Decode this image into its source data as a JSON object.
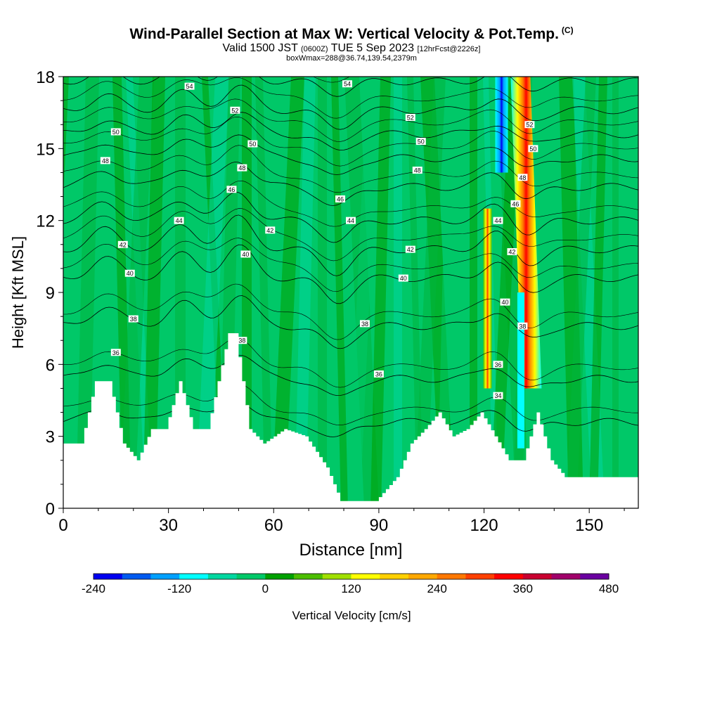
{
  "header": {
    "title": "Wind-Parallel Section at Max W: Vertical Velocity & Pot.Temp.",
    "copyright": "(C)",
    "valid_prefix": "Valid 1500 JST",
    "valid_utc": "(0600Z)",
    "valid_date": "TUE 5 Sep 2023",
    "forecast": "[12hrFcst@2226z]",
    "box_info": "boxWmax=288@36.74,139.54,2379m"
  },
  "chart_data": {
    "type": "heatmap",
    "xlabel": "Distance [nm]",
    "ylabel": "Height [Kft MSL]",
    "xlim": [
      0,
      164
    ],
    "ylim": [
      0,
      18
    ],
    "x_ticks": [
      0,
      30,
      60,
      90,
      120,
      150
    ],
    "x_tick_labels": [
      "0",
      "30",
      "60",
      "90",
      "120",
      "150"
    ],
    "y_ticks": [
      0,
      3,
      6,
      9,
      12,
      15,
      18
    ],
    "y_tick_labels": [
      "0",
      "3",
      "6",
      "9",
      "12",
      "15",
      "18"
    ],
    "colorbar": {
      "label": "Vertical Velocity [cm/s]",
      "ticks": [
        -240,
        -120,
        0,
        120,
        240,
        360,
        480
      ],
      "tick_labels": [
        "-240",
        "-120",
        "0",
        "120",
        "240",
        "360",
        "480"
      ],
      "levels": [
        -240,
        -200,
        -160,
        -120,
        -80,
        -40,
        0,
        40,
        80,
        120,
        160,
        200,
        240,
        280,
        320,
        360,
        400,
        440,
        480
      ],
      "colors": [
        "#0000f0",
        "#005af0",
        "#00a0ff",
        "#00ffff",
        "#00d7a0",
        "#00c868",
        "#00a000",
        "#4cbe00",
        "#a0e000",
        "#ffff00",
        "#ffd000",
        "#ffa800",
        "#ff7800",
        "#ff4000",
        "#ff0000",
        "#c80030",
        "#a0006a",
        "#6a00a0"
      ]
    },
    "terrain_kft": [
      [
        0,
        2.7
      ],
      [
        6,
        2.7
      ],
      [
        10,
        5.3
      ],
      [
        14,
        5.3
      ],
      [
        18,
        2.7
      ],
      [
        22,
        2.0
      ],
      [
        26,
        3.3
      ],
      [
        30,
        3.3
      ],
      [
        34,
        5.3
      ],
      [
        38,
        3.3
      ],
      [
        42,
        3.3
      ],
      [
        48,
        7.3
      ],
      [
        50,
        7.3
      ],
      [
        54,
        3.3
      ],
      [
        58,
        2.7
      ],
      [
        64,
        3.3
      ],
      [
        70,
        3.0
      ],
      [
        76,
        1.7
      ],
      [
        80,
        0.3
      ],
      [
        84,
        0.3
      ],
      [
        90,
        0.3
      ],
      [
        96,
        1.3
      ],
      [
        100,
        2.7
      ],
      [
        104,
        3.3
      ],
      [
        108,
        4.0
      ],
      [
        112,
        3.0
      ],
      [
        116,
        3.3
      ],
      [
        120,
        4.0
      ],
      [
        124,
        3.0
      ],
      [
        128,
        2.0
      ],
      [
        132,
        2.0
      ],
      [
        136,
        4.0
      ],
      [
        140,
        2.0
      ],
      [
        144,
        1.3
      ],
      [
        164,
        1.3
      ]
    ],
    "theta_contours": [
      {
        "label": "34",
        "base": 3.6,
        "amp": 0.6
      },
      {
        "label": "36",
        "base": 5.4,
        "amp": 0.7
      },
      {
        "label": "38",
        "base": 7.6,
        "amp": 0.8
      },
      {
        "label": "40",
        "base": 9.6,
        "amp": 0.8
      },
      {
        "label": "42",
        "base": 10.8,
        "amp": 0.8
      },
      {
        "label": "44",
        "base": 12.0,
        "amp": 0.7
      },
      {
        "label": "46",
        "base": 13.4,
        "amp": 0.7
      },
      {
        "label": "48",
        "base": 14.6,
        "amp": 0.7
      },
      {
        "label": "50",
        "base": 15.6,
        "amp": 0.6
      },
      {
        "label": "52",
        "base": 16.6,
        "amp": 0.6
      },
      {
        "label": "54",
        "base": 17.8,
        "amp": 0.4
      }
    ],
    "contour_labels": [
      {
        "text": "54",
        "x": 36,
        "y": 17.6
      },
      {
        "text": "54",
        "x": 81,
        "y": 17.7
      },
      {
        "text": "52",
        "x": 49,
        "y": 16.6
      },
      {
        "text": "52",
        "x": 99,
        "y": 16.3
      },
      {
        "text": "52",
        "x": 133,
        "y": 16.0
      },
      {
        "text": "50",
        "x": 15,
        "y": 15.7
      },
      {
        "text": "50",
        "x": 54,
        "y": 15.2
      },
      {
        "text": "50",
        "x": 102,
        "y": 15.3
      },
      {
        "text": "50",
        "x": 134,
        "y": 15.0
      },
      {
        "text": "48",
        "x": 12,
        "y": 14.5
      },
      {
        "text": "48",
        "x": 51,
        "y": 14.2
      },
      {
        "text": "48",
        "x": 101,
        "y": 14.1
      },
      {
        "text": "48",
        "x": 131,
        "y": 13.8
      },
      {
        "text": "46",
        "x": 48,
        "y": 13.3
      },
      {
        "text": "46",
        "x": 79,
        "y": 12.9
      },
      {
        "text": "46",
        "x": 129,
        "y": 12.7
      },
      {
        "text": "44",
        "x": 33,
        "y": 12.0
      },
      {
        "text": "44",
        "x": 82,
        "y": 12.0
      },
      {
        "text": "44",
        "x": 124,
        "y": 12.0
      },
      {
        "text": "42",
        "x": 59,
        "y": 11.6
      },
      {
        "text": "42",
        "x": 99,
        "y": 10.8
      },
      {
        "text": "42",
        "x": 128,
        "y": 10.7
      },
      {
        "text": "42",
        "x": 17,
        "y": 11.0
      },
      {
        "text": "40",
        "x": 52,
        "y": 10.6
      },
      {
        "text": "40",
        "x": 19,
        "y": 9.8
      },
      {
        "text": "40",
        "x": 97,
        "y": 9.6
      },
      {
        "text": "40",
        "x": 126,
        "y": 8.6
      },
      {
        "text": "38",
        "x": 20,
        "y": 7.9
      },
      {
        "text": "38",
        "x": 86,
        "y": 7.7
      },
      {
        "text": "38",
        "x": 131,
        "y": 7.6
      },
      {
        "text": "38",
        "x": 51,
        "y": 7.0
      },
      {
        "text": "36",
        "x": 15,
        "y": 6.5
      },
      {
        "text": "36",
        "x": 90,
        "y": 5.6
      },
      {
        "text": "36",
        "x": 124,
        "y": 6.0
      },
      {
        "text": "34",
        "x": 124,
        "y": 4.7
      }
    ],
    "w_features": [
      {
        "name": "updraft-core",
        "x": 132,
        "w_cms": 360,
        "ymin": 5.0,
        "ymax": 18.0
      },
      {
        "name": "updraft-secondary",
        "x": 121,
        "w_cms": 240,
        "ymin": 5.0,
        "ymax": 12.5
      },
      {
        "name": "downdraft-core",
        "x": 125,
        "w_cms": -240,
        "ymin": 14.0,
        "ymax": 18.0
      },
      {
        "name": "downdraft-column",
        "x": 130.5,
        "w_cms": -80,
        "ymin": 2.5,
        "ymax": 9.0
      }
    ]
  }
}
